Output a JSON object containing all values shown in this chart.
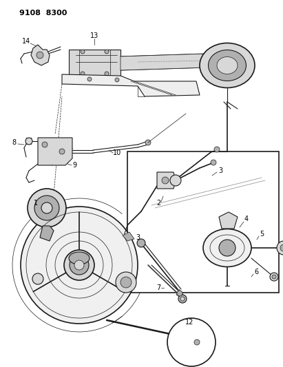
{
  "title": "9108 8300",
  "bg_color": "#ffffff",
  "line_color": "#1a1a1a",
  "fig_width": 4.11,
  "fig_height": 5.33,
  "dpi": 100,
  "gray_light": "#d8d8d8",
  "gray_mid": "#b0b0b0",
  "gray_dark": "#888888"
}
